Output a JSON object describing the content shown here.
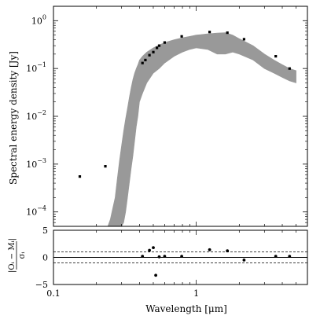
{
  "chart_data": [
    {
      "type": "scatter",
      "panel": "main",
      "xlabel": "Wavelength [μm]",
      "ylabel": "Spectral energy density [Jy]",
      "xscale": "log",
      "yscale": "log",
      "xlim": [
        0.1,
        6
      ],
      "ylim": [
        5e-05,
        2
      ],
      "yticks": [
        {
          "value": 0.0001,
          "base": "10",
          "exp": "−4"
        },
        {
          "value": 0.001,
          "base": "10",
          "exp": "−3"
        },
        {
          "value": 0.01,
          "base": "10",
          "exp": "−2"
        },
        {
          "value": 0.1,
          "base": "10",
          "exp": "−1"
        },
        {
          "value": 1,
          "base": "10",
          "exp": "0"
        }
      ],
      "grid": false,
      "model_color": "#999999",
      "series": [
        {
          "kind": "model-spectrum",
          "color": "#999999",
          "x": [
            0.24,
            0.25,
            0.26,
            0.27,
            0.28,
            0.29,
            0.3,
            0.31,
            0.32,
            0.33,
            0.34,
            0.35,
            0.36,
            0.37,
            0.38,
            0.39,
            0.4,
            0.42,
            0.45,
            0.5,
            0.55,
            0.6,
            0.7,
            0.8,
            0.9,
            1.0,
            1.2,
            1.4,
            1.6,
            1.8,
            2.0,
            2.5,
            3.0,
            3.5,
            4.0,
            4.5,
            5.0
          ],
          "upper": [
            5e-05,
            7e-05,
            0.00012,
            0.0002,
            0.0005,
            0.0012,
            0.0025,
            0.005,
            0.009,
            0.015,
            0.025,
            0.04,
            0.06,
            0.08,
            0.1,
            0.12,
            0.15,
            0.18,
            0.22,
            0.27,
            0.31,
            0.35,
            0.4,
            0.44,
            0.47,
            0.5,
            0.53,
            0.55,
            0.56,
            0.5,
            0.42,
            0.3,
            0.2,
            0.15,
            0.12,
            0.1,
            0.09
          ],
          "lower": [
            5e-05,
            5e-05,
            5e-05,
            5e-05,
            5e-05,
            5e-05,
            5e-05,
            6e-05,
            0.0001,
            0.0002,
            0.0004,
            0.0008,
            0.0015,
            0.003,
            0.006,
            0.01,
            0.02,
            0.03,
            0.05,
            0.08,
            0.1,
            0.13,
            0.18,
            0.22,
            0.25,
            0.27,
            0.25,
            0.2,
            0.2,
            0.22,
            0.2,
            0.15,
            0.1,
            0.08,
            0.065,
            0.055,
            0.05
          ]
        },
        {
          "kind": "photometry",
          "color": "#000000",
          "x": [
            0.153,
            0.231,
            0.42,
            0.44,
            0.47,
            0.5,
            0.53,
            0.55,
            0.6,
            0.79,
            1.24,
            1.65,
            2.16,
            3.6,
            4.5
          ],
          "y": [
            0.00055,
            0.0009,
            0.13,
            0.15,
            0.19,
            0.22,
            0.27,
            0.3,
            0.35,
            0.47,
            0.58,
            0.56,
            0.41,
            0.18,
            0.1
          ]
        }
      ]
    },
    {
      "type": "scatter",
      "panel": "residuals",
      "xlabel": "Wavelength [μm]",
      "ylabel": "(Oᵢ − Mᵢ)/σᵢ",
      "ylabel_num": "|Oᵢ − Mᵢ|",
      "ylabel_den": "σᵢ",
      "xscale": "log",
      "xlim": [
        0.1,
        6
      ],
      "ylim": [
        -5,
        5
      ],
      "xticks": [
        {
          "value": 0.1,
          "label": "0.1"
        },
        {
          "value": 1,
          "label": "1"
        }
      ],
      "yticks": [
        {
          "value": 5,
          "label": "5"
        },
        {
          "value": 0,
          "label": "0"
        },
        {
          "value": -5,
          "label": "−5"
        }
      ],
      "reference_lines": [
        {
          "y": 0,
          "style": "solid"
        },
        {
          "y": 1,
          "style": "dashed"
        },
        {
          "y": -1,
          "style": "dashed"
        }
      ],
      "series": [
        {
          "kind": "residuals",
          "color": "#000000",
          "x": [
            0.42,
            0.47,
            0.5,
            0.52,
            0.55,
            0.6,
            0.79,
            1.24,
            1.65,
            2.16,
            3.6,
            4.5
          ],
          "y": [
            0.2,
            1.3,
            1.8,
            -3.3,
            0.1,
            0.2,
            0.2,
            1.4,
            1.2,
            -0.5,
            0.2,
            0.2
          ]
        }
      ]
    }
  ]
}
